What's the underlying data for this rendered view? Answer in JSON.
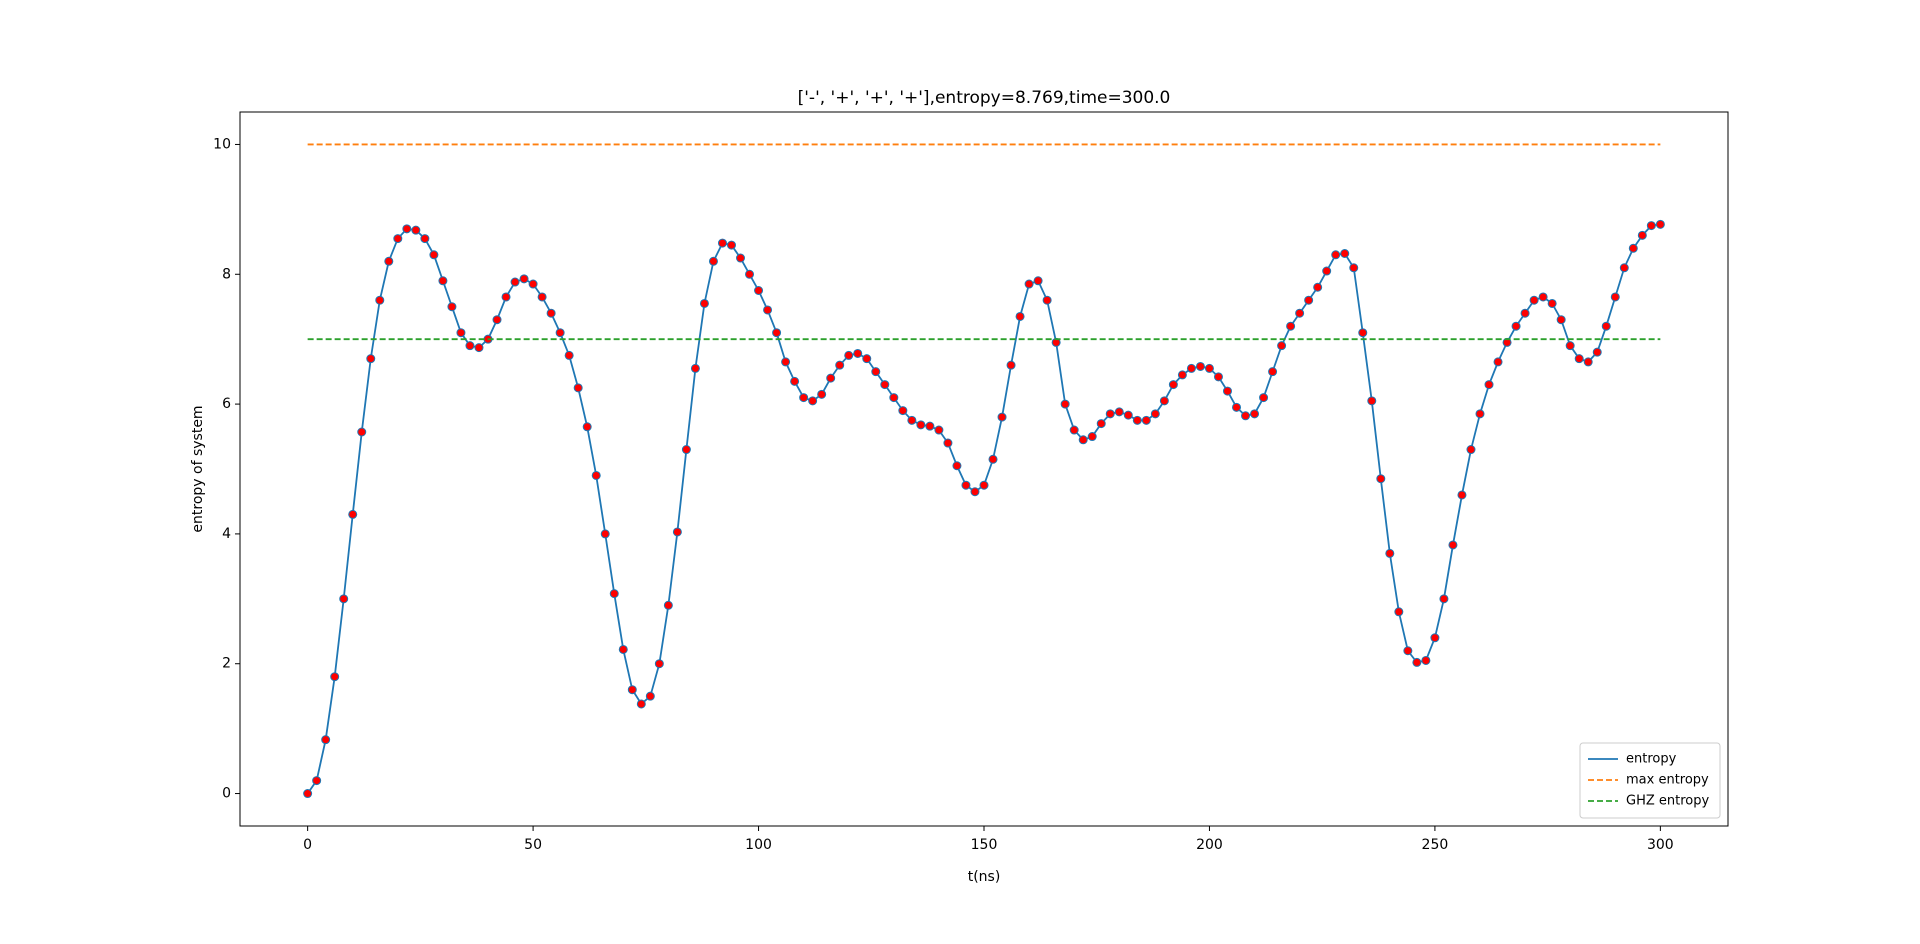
{
  "chart_data": {
    "type": "line",
    "title": "['-', '+', '+', '+'],entropy=8.769,time=300.0",
    "xlabel": "t(ns)",
    "ylabel": "entropy of system",
    "xlim": [
      -15,
      315
    ],
    "ylim": [
      -0.5,
      10.5
    ],
    "xticks": [
      0,
      50,
      100,
      150,
      200,
      250,
      300
    ],
    "yticks": [
      0,
      2,
      4,
      6,
      8,
      10
    ],
    "legend": "lower right",
    "series": [
      {
        "name": "entropy",
        "color": "#1f77b4",
        "marker_color": "#ff0000",
        "dash": false,
        "markers": true,
        "x": [
          0,
          2,
          4,
          6,
          8,
          10,
          12,
          14,
          16,
          18,
          20,
          22,
          24,
          26,
          28,
          30,
          32,
          34,
          36,
          38,
          40,
          42,
          44,
          46,
          48,
          50,
          52,
          54,
          56,
          58,
          60,
          62,
          64,
          66,
          68,
          70,
          72,
          74,
          76,
          78,
          80,
          82,
          84,
          86,
          88,
          90,
          92,
          94,
          96,
          98,
          100,
          102,
          104,
          106,
          108,
          110,
          112,
          114,
          116,
          118,
          120,
          122,
          124,
          126,
          128,
          130,
          132,
          134,
          136,
          138,
          140,
          142,
          144,
          146,
          148,
          150,
          152,
          154,
          156,
          158,
          160,
          162,
          164,
          166,
          168,
          170,
          172,
          174,
          176,
          178,
          180,
          182,
          184,
          186,
          188,
          190,
          192,
          194,
          196,
          198,
          200,
          202,
          204,
          206,
          208,
          210,
          212,
          214,
          216,
          218,
          220,
          222,
          224,
          226,
          228,
          230,
          232,
          234,
          236,
          238,
          240,
          242,
          244,
          246,
          248,
          250,
          252,
          254,
          256,
          258,
          260,
          262,
          264,
          266,
          268,
          270,
          272,
          274,
          276,
          278,
          280,
          282,
          284,
          286,
          288,
          290,
          292,
          294,
          296,
          298,
          300
        ],
        "values": [
          0,
          0.2,
          0.83,
          1.8,
          3.0,
          4.3,
          5.57,
          6.7,
          7.6,
          8.2,
          8.55,
          8.7,
          8.68,
          8.55,
          8.3,
          7.9,
          7.5,
          7.1,
          6.9,
          6.87,
          7.0,
          7.3,
          7.65,
          7.88,
          7.93,
          7.85,
          7.65,
          7.4,
          7.1,
          6.75,
          6.25,
          5.65,
          4.9,
          4.0,
          3.08,
          2.22,
          1.6,
          1.38,
          1.5,
          2.0,
          2.9,
          4.03,
          5.3,
          6.55,
          7.55,
          8.2,
          8.48,
          8.45,
          8.25,
          8.0,
          7.75,
          7.45,
          7.1,
          6.65,
          6.35,
          6.1,
          6.05,
          6.15,
          6.4,
          6.6,
          6.75,
          6.78,
          6.7,
          6.5,
          6.3,
          6.1,
          5.9,
          5.75,
          5.68,
          5.66,
          5.6,
          5.4,
          5.05,
          4.75,
          4.65,
          4.75,
          5.15,
          5.8,
          6.6,
          7.35,
          7.85,
          7.9,
          7.6,
          6.95,
          6.0,
          5.6,
          5.45,
          5.5,
          5.7,
          5.85,
          5.88,
          5.83,
          5.75,
          5.75,
          5.85,
          6.05,
          6.3,
          6.45,
          6.55,
          6.58,
          6.55,
          6.42,
          6.2,
          5.95,
          5.82,
          5.85,
          6.1,
          6.5,
          6.9,
          7.2,
          7.4,
          7.6,
          7.8,
          8.05,
          8.3,
          8.32,
          8.1,
          7.1,
          6.05,
          4.85,
          3.7,
          2.8,
          2.2,
          2.02,
          2.05,
          2.4,
          3.0,
          3.83,
          4.6,
          5.3,
          5.85,
          6.3,
          6.65,
          6.95,
          7.2,
          7.4,
          7.6,
          7.65,
          7.55,
          7.3,
          6.9,
          6.7,
          6.65,
          6.8,
          7.2,
          7.65,
          8.1,
          8.4,
          8.6,
          8.75,
          8.769
        ]
      },
      {
        "name": "max entropy",
        "color": "#ff7f0e",
        "dash": true,
        "markers": false,
        "x": [
          0,
          300
        ],
        "values": [
          10,
          10
        ]
      },
      {
        "name": "GHZ entropy",
        "color": "#2ca02c",
        "dash": true,
        "markers": false,
        "x": [
          0,
          300
        ],
        "values": [
          7,
          7
        ]
      }
    ]
  }
}
